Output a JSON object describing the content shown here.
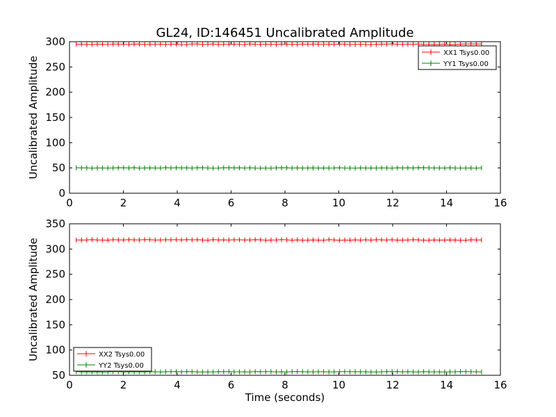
{
  "figure_title": "GL24, ID:146451 Uncalibrated Amplitude",
  "colors": {
    "red": "#ff0000",
    "green": "#008000",
    "axes": "#000000",
    "background": "#ffffff"
  },
  "chart_data": [
    {
      "type": "line",
      "title": "GL24, ID:146451 Uncalibrated Amplitude",
      "xlabel": "",
      "ylabel": "Uncalibrated Amplitude",
      "xlim": [
        0,
        16
      ],
      "ylim": [
        0,
        300
      ],
      "xticks": [
        "0",
        "2",
        "4",
        "6",
        "8",
        "10",
        "12",
        "14",
        "16"
      ],
      "yticks": [
        "0",
        "50",
        "100",
        "150",
        "200",
        "250",
        "300"
      ],
      "legend_location": "upper right",
      "x": {
        "start": 0.25,
        "end": 15.3,
        "count": 78
      },
      "series": [
        {
          "name": "XX1 Tsys0.00",
          "color": "#ff0000",
          "value": 295,
          "noise": 0.7
        },
        {
          "name": "YY1 Tsys0.00",
          "color": "#008000",
          "value": 50,
          "noise": 0.4
        }
      ]
    },
    {
      "type": "line",
      "title": "",
      "xlabel": "Time (seconds)",
      "ylabel": "Uncalibrated Amplitude",
      "xlim": [
        0,
        16
      ],
      "ylim": [
        50,
        350
      ],
      "xticks": [
        "0",
        "2",
        "4",
        "6",
        "8",
        "10",
        "12",
        "14",
        "16"
      ],
      "yticks": [
        "50",
        "100",
        "150",
        "200",
        "250",
        "300",
        "350"
      ],
      "legend_location": "lower left",
      "x": {
        "start": 0.25,
        "end": 15.3,
        "count": 78
      },
      "series": [
        {
          "name": "XX2 Tsys0.00",
          "color": "#ff0000",
          "value": 318,
          "noise": 0.7
        },
        {
          "name": "YY2 Tsys0.00",
          "color": "#008000",
          "value": 57,
          "noise": 0.4
        }
      ]
    }
  ]
}
